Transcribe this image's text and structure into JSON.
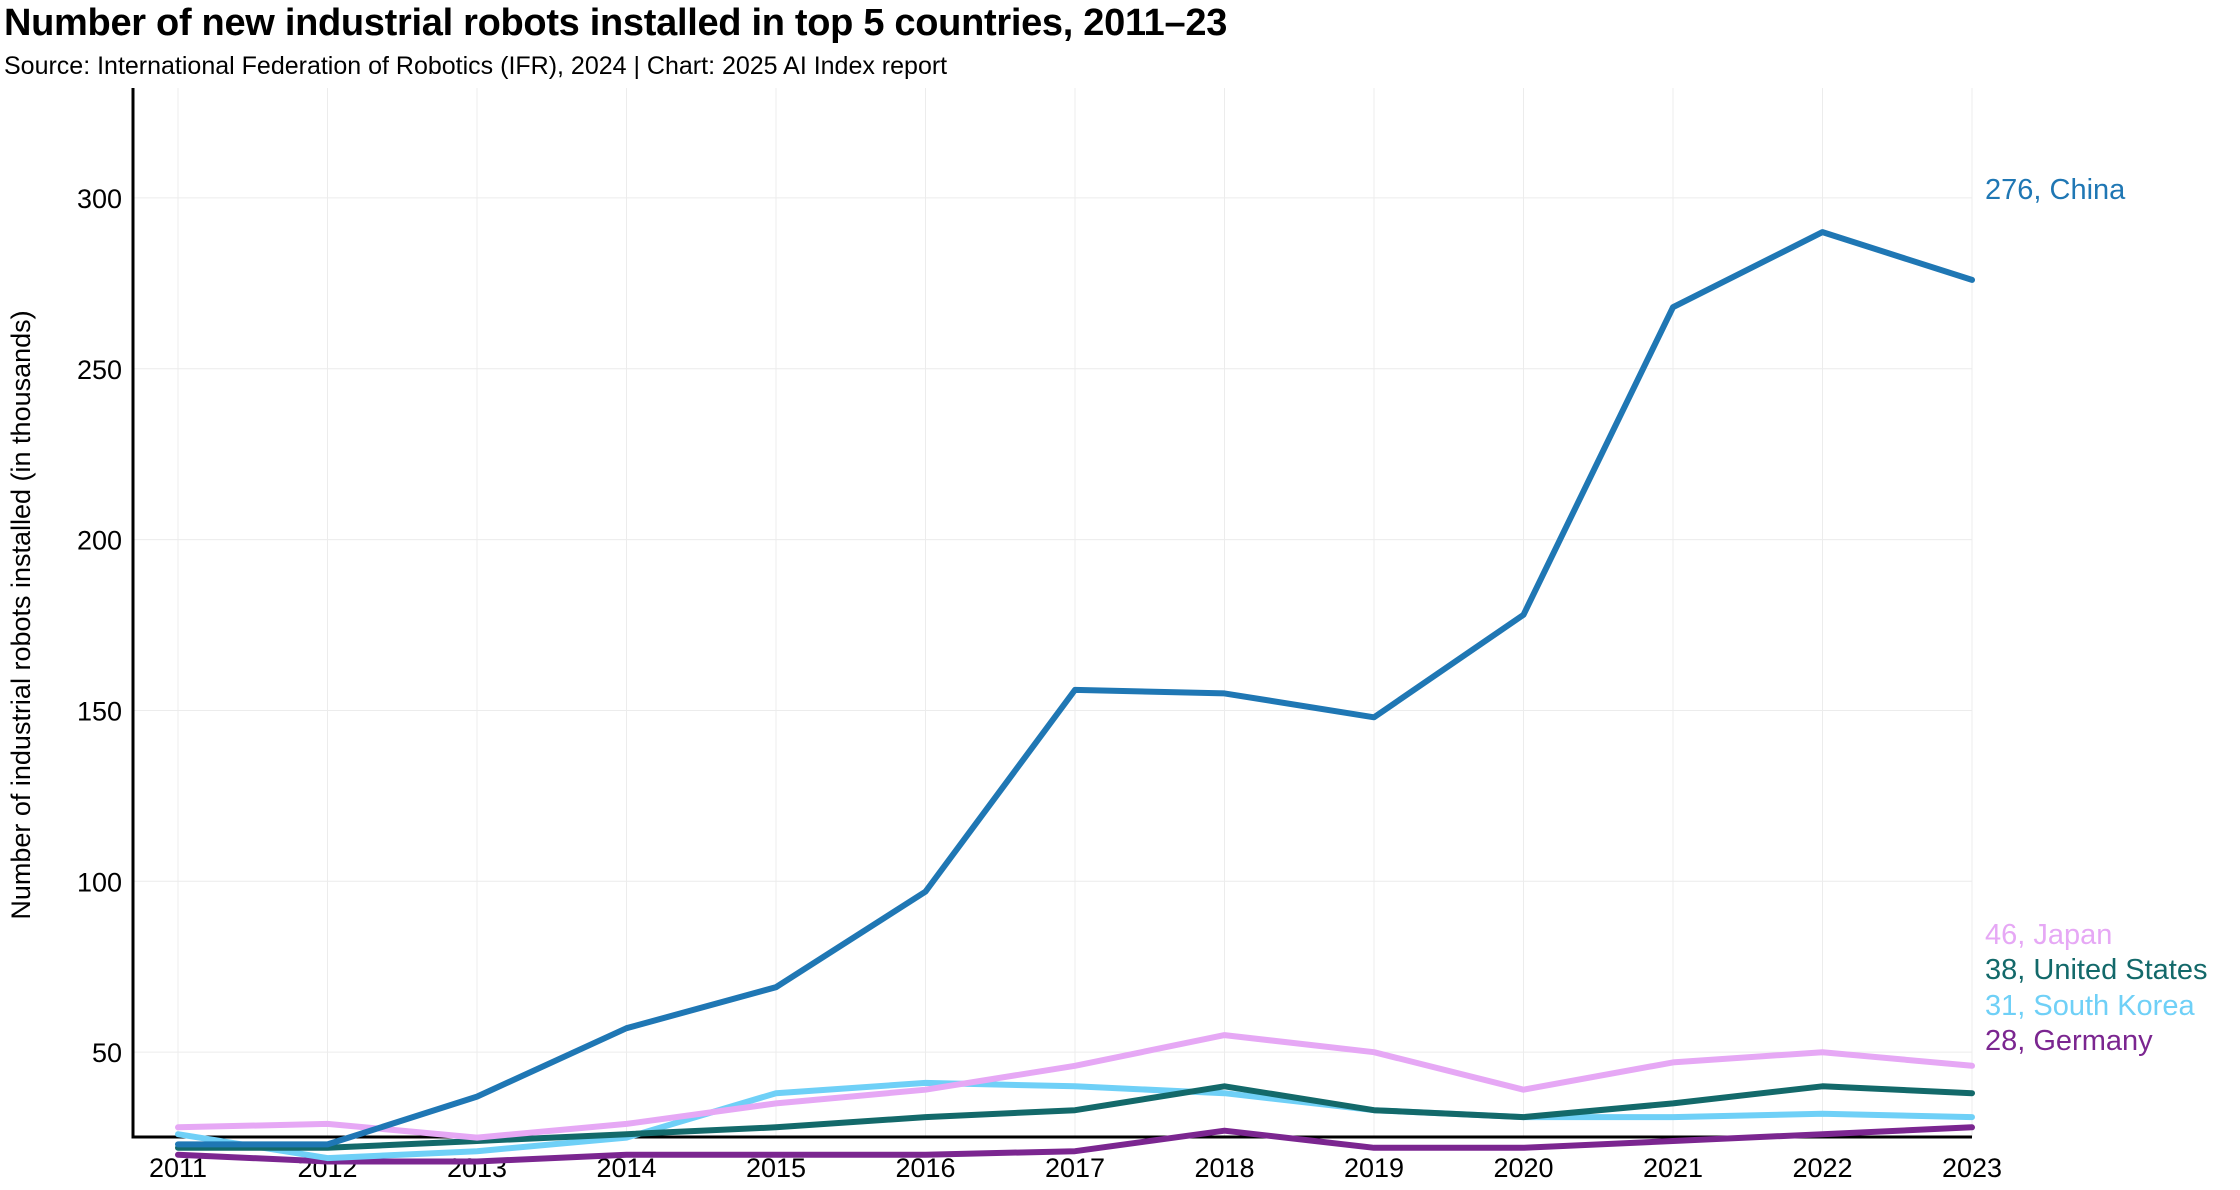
{
  "header": {
    "title": "Number of new industrial robots installed in top 5 countries, 2011–23",
    "subtitle": "Source: International Federation of Robotics (IFR), 2024 | Chart: 2025 AI Index report"
  },
  "chart_data": {
    "type": "line",
    "title": "Number of new industrial robots installed in top 5 countries, 2011–23",
    "subtitle": "Source: International Federation of Robotics (IFR), 2024 | Chart: 2025 AI Index report",
    "xlabel": "",
    "ylabel": "Number of industrial robots installed (in thousands)",
    "x": [
      "2011",
      "2012",
      "2013",
      "2014",
      "2015",
      "2016",
      "2017",
      "2018",
      "2019",
      "2020",
      "2021",
      "2022",
      "2023"
    ],
    "ylim": [
      0,
      300
    ],
    "yticks": [
      50,
      100,
      150,
      200,
      250,
      300
    ],
    "grid": true,
    "legend": "end-of-line labels",
    "series": [
      {
        "name": "China",
        "color": "#1f77b4",
        "end_label": "276, China",
        "values": [
          23,
          23,
          37,
          57,
          69,
          97,
          156,
          155,
          148,
          178,
          268,
          290,
          276
        ]
      },
      {
        "name": "Japan",
        "color": "#e6a8f5",
        "end_label": "46, Japan",
        "values": [
          28,
          29,
          25,
          29,
          35,
          39,
          46,
          55,
          50,
          39,
          47,
          50,
          46
        ]
      },
      {
        "name": "United States",
        "color": "#13696a",
        "end_label": "38, United States",
        "values": [
          22,
          22,
          24,
          26,
          28,
          31,
          33,
          40,
          33,
          31,
          35,
          40,
          38
        ]
      },
      {
        "name": "South Korea",
        "color": "#6fd0f7",
        "end_label": "31, South Korea",
        "values": [
          26,
          19,
          21,
          25,
          38,
          41,
          40,
          38,
          33,
          31,
          31,
          32,
          31
        ]
      },
      {
        "name": "Germany",
        "color": "#7b2690",
        "end_label": "28, Germany",
        "values": [
          20,
          18,
          18,
          20,
          20,
          20,
          21,
          27,
          22,
          22,
          24,
          26,
          28
        ]
      }
    ]
  }
}
